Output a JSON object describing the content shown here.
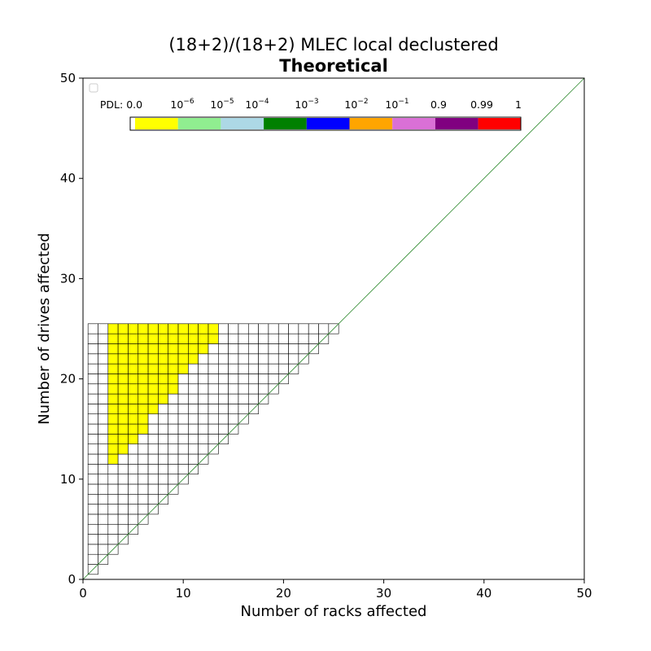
{
  "chart_data": {
    "type": "heatmap",
    "title": "(18+2)/(18+2) MLEC local declustered",
    "subtitle": "Theoretical",
    "xlabel": "Number of racks affected",
    "ylabel": "Number of drives affected",
    "xlim": [
      0,
      50
    ],
    "ylim": [
      0,
      50
    ],
    "xticks": [
      "0",
      "10",
      "20",
      "30",
      "40",
      "50"
    ],
    "yticks": [
      "0",
      "10",
      "20",
      "30",
      "40",
      "50"
    ],
    "grid": false,
    "diagonal_line": {
      "from": [
        0,
        0
      ],
      "to": [
        50,
        50
      ],
      "color": "#2e8b2e"
    },
    "cell_grid": {
      "racks_range": [
        1,
        25
      ],
      "drives_max": 25,
      "rule": "cells exist for drives >= racks"
    },
    "pdl_cells": {
      "value_label": "10^-6 or lower (yellow)",
      "color": "#ffff00",
      "min_drives_by_rack": [
        {
          "racks": 3,
          "min_drives": 12
        },
        {
          "racks": 4,
          "min_drives": 13
        },
        {
          "racks": 5,
          "min_drives": 14
        },
        {
          "racks": 6,
          "min_drives": 15
        },
        {
          "racks": 7,
          "min_drives": 17
        },
        {
          "racks": 8,
          "min_drives": 18
        },
        {
          "racks": 9,
          "min_drives": 19
        },
        {
          "racks": 10,
          "min_drives": 21
        },
        {
          "racks": 11,
          "min_drives": 22
        },
        {
          "racks": 12,
          "min_drives": 23
        },
        {
          "racks": 13,
          "min_drives": 24
        }
      ]
    },
    "legend": {
      "placement": "top",
      "prefix": "PDL: ",
      "labels": [
        {
          "base": "0.0",
          "exp": ""
        },
        {
          "base": "10",
          "exp": "−6"
        },
        {
          "base": "10",
          "exp": "−5"
        },
        {
          "base": "10",
          "exp": "−4"
        },
        {
          "base": "10",
          "exp": "−3"
        },
        {
          "base": "10",
          "exp": "−2"
        },
        {
          "base": "10",
          "exp": "−1"
        },
        {
          "base": "0.9",
          "exp": ""
        },
        {
          "base": "0.99",
          "exp": ""
        },
        {
          "base": "1",
          "exp": ""
        }
      ],
      "colors": [
        "#ffff00",
        "#90ee90",
        "#add8e6",
        "#008000",
        "#0000ff",
        "#ffa500",
        "#da70d6",
        "#800080",
        "#ff0000"
      ]
    }
  }
}
